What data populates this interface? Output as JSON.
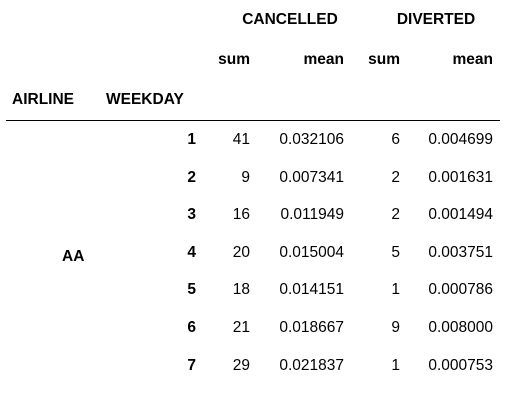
{
  "table": {
    "column_groups": [
      "CANCELLED",
      "DIVERTED"
    ],
    "sub_columns": [
      "sum",
      "mean",
      "sum",
      "mean"
    ],
    "index_names": [
      "AIRLINE",
      "WEEKDAY"
    ],
    "airline": "AA",
    "rows": [
      {
        "weekday": "1",
        "cancelled_sum": "41",
        "cancelled_mean": "0.032106",
        "diverted_sum": "6",
        "diverted_mean": "0.004699"
      },
      {
        "weekday": "2",
        "cancelled_sum": "9",
        "cancelled_mean": "0.007341",
        "diverted_sum": "2",
        "diverted_mean": "0.001631"
      },
      {
        "weekday": "3",
        "cancelled_sum": "16",
        "cancelled_mean": "0.011949",
        "diverted_sum": "2",
        "diverted_mean": "0.001494"
      },
      {
        "weekday": "4",
        "cancelled_sum": "20",
        "cancelled_mean": "0.015004",
        "diverted_sum": "5",
        "diverted_mean": "0.003751"
      },
      {
        "weekday": "5",
        "cancelled_sum": "18",
        "cancelled_mean": "0.014151",
        "diverted_sum": "1",
        "diverted_mean": "0.000786"
      },
      {
        "weekday": "6",
        "cancelled_sum": "21",
        "cancelled_mean": "0.018667",
        "diverted_sum": "9",
        "diverted_mean": "0.008000"
      },
      {
        "weekday": "7",
        "cancelled_sum": "29",
        "cancelled_mean": "0.021837",
        "diverted_sum": "1",
        "diverted_mean": "0.000753"
      }
    ]
  }
}
